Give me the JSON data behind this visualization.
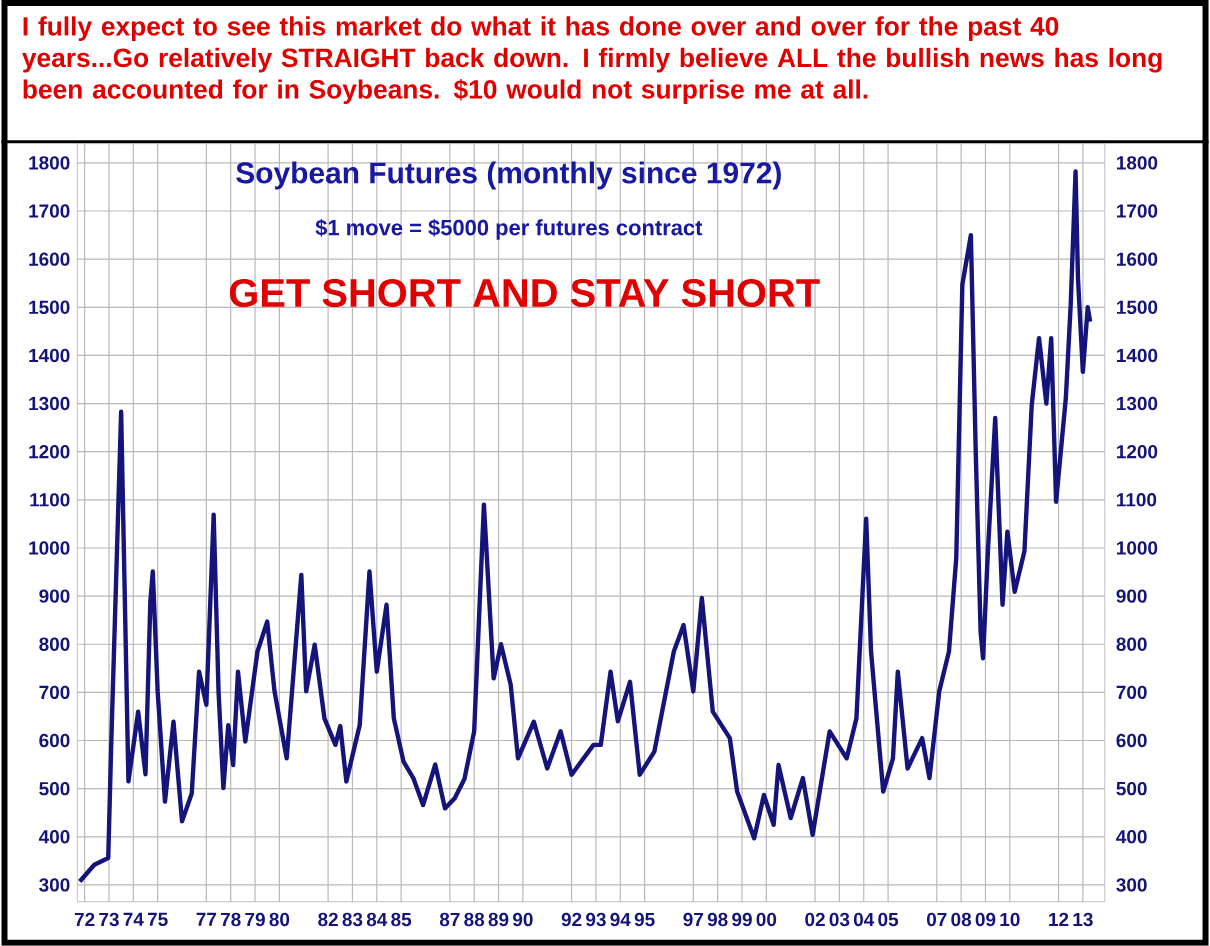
{
  "chart_data": {
    "type": "line",
    "title": "Soybean Futures (monthly since 1972)",
    "subtitle": "$1 move = $5000 per futures contract",
    "annotations": [
      "I fully expect to see this market do what it has done over and over for the past 40 years...Go relatively STRAIGHT back down. I firmly believe ALL the bullish news has long been accounted for in Soybeans. $10 would not surprise me at all.",
      "GET SHORT AND STAY SHORT"
    ],
    "x": [
      1971.8,
      1972.4,
      1972.97,
      1973.1,
      1973.5,
      1973.8,
      1974.2,
      1974.5,
      1974.7,
      1974.8,
      1975.0,
      1975.3,
      1975.65,
      1976.0,
      1976.4,
      1976.7,
      1977.0,
      1977.3,
      1977.5,
      1977.7,
      1977.9,
      1978.1,
      1978.3,
      1978.6,
      1979.1,
      1979.5,
      1979.8,
      1980.3,
      1980.9,
      1981.1,
      1981.45,
      1981.85,
      1982.3,
      1982.5,
      1982.75,
      1983.3,
      1983.7,
      1984.0,
      1984.4,
      1984.7,
      1985.1,
      1985.5,
      1985.9,
      1986.4,
      1986.8,
      1987.2,
      1987.6,
      1988.0,
      1988.4,
      1988.8,
      1989.1,
      1989.5,
      1989.8,
      1990.45,
      1991.0,
      1991.55,
      1992.0,
      1992.9,
      1993.2,
      1993.6,
      1993.9,
      1994.4,
      1994.8,
      1995.4,
      1996.2,
      1996.6,
      1997.0,
      1997.35,
      1997.8,
      1998.5,
      1998.8,
      1999.5,
      1999.9,
      2000.3,
      2000.5,
      2001.0,
      2001.5,
      2001.9,
      2002.6,
      2003.3,
      2003.7,
      2004.1,
      2004.3,
      2004.8,
      2005.2,
      2005.4,
      2005.8,
      2006.4,
      2006.7,
      2007.1,
      2007.5,
      2007.8,
      2008.05,
      2008.4,
      2008.6,
      2008.8,
      2008.9,
      2009.1,
      2009.4,
      2009.7,
      2009.9,
      2010.2,
      2010.6,
      2010.9,
      2011.2,
      2011.5,
      2011.7,
      2011.9,
      2012.3,
      2012.5,
      2012.7,
      2012.8,
      2013.0,
      2013.2,
      2013.3
    ],
    "series": [
      {
        "color": "#14147a",
        "values": [
          307,
          342,
          356,
          605,
          1283,
          515,
          660,
          530,
          889,
          951,
          702,
          473,
          639,
          432,
          490,
          743,
          674,
          1069,
          702,
          501,
          632,
          549,
          743,
          598,
          785,
          847,
          702,
          563,
          944,
          702,
          799,
          646,
          591,
          630,
          515,
          632,
          951,
          743,
          882,
          646,
          556,
          522,
          466,
          550,
          459,
          480,
          520,
          619,
          1090,
          729,
          800,
          716,
          563,
          639,
          542,
          619,
          529,
          591,
          591,
          743,
          640,
          722,
          529,
          577,
          785,
          840,
          702,
          896,
          660,
          605,
          494,
          397,
          487,
          425,
          549,
          439,
          522,
          404,
          619,
          563,
          646,
          1061,
          785,
          494,
          563,
          743,
          542,
          605,
          522,
          702,
          785,
          979,
          1547,
          1650,
          1200,
          826,
          771,
          993,
          1270,
          882,
          1034,
          909,
          993,
          1297,
          1436,
          1300,
          1436,
          1096,
          1311,
          1505,
          1782,
          1560,
          1366,
          1500,
          1470
        ]
      }
    ],
    "xlim": [
      1971.7,
      2013.9
    ],
    "xticks": [
      {
        "value": 1972,
        "label": "72"
      },
      {
        "value": 1973,
        "label": "73"
      },
      {
        "value": 1974,
        "label": "74"
      },
      {
        "value": 1975,
        "label": "75"
      },
      {
        "value": 1977,
        "label": "77"
      },
      {
        "value": 1978,
        "label": "78"
      },
      {
        "value": 1979,
        "label": "79"
      },
      {
        "value": 1980,
        "label": "80"
      },
      {
        "value": 1982,
        "label": "82"
      },
      {
        "value": 1983,
        "label": "83"
      },
      {
        "value": 1984,
        "label": "84"
      },
      {
        "value": 1985,
        "label": "85"
      },
      {
        "value": 1987,
        "label": "87"
      },
      {
        "value": 1988,
        "label": "88"
      },
      {
        "value": 1989,
        "label": "89"
      },
      {
        "value": 1990,
        "label": "90"
      },
      {
        "value": 1992,
        "label": "92"
      },
      {
        "value": 1993,
        "label": "93"
      },
      {
        "value": 1994,
        "label": "94"
      },
      {
        "value": 1995,
        "label": "95"
      },
      {
        "value": 1997,
        "label": "97"
      },
      {
        "value": 1998,
        "label": "98"
      },
      {
        "value": 1999,
        "label": "99"
      },
      {
        "value": 2000,
        "label": "00"
      },
      {
        "value": 2002,
        "label": "02"
      },
      {
        "value": 2003,
        "label": "03"
      },
      {
        "value": 2004,
        "label": "04"
      },
      {
        "value": 2005,
        "label": "05"
      },
      {
        "value": 2007,
        "label": "07"
      },
      {
        "value": 2008,
        "label": "08"
      },
      {
        "value": 2009,
        "label": "09"
      },
      {
        "value": 2010,
        "label": "10"
      },
      {
        "value": 2012,
        "label": "12"
      },
      {
        "value": 2013,
        "label": "13"
      }
    ],
    "ylim": [
      265,
      1840
    ],
    "yticks": [
      300,
      400,
      500,
      600,
      700,
      800,
      900,
      1000,
      1100,
      1200,
      1300,
      1400,
      1500,
      1600,
      1700,
      1800
    ],
    "y2lim": [
      265,
      1840
    ],
    "y2ticks": [
      300,
      400,
      500,
      600,
      700,
      800,
      900,
      1000,
      1100,
      1200,
      1300,
      1400,
      1500,
      1600,
      1700,
      1800
    ],
    "grid": true,
    "marker": "none",
    "line_style": "solid"
  }
}
